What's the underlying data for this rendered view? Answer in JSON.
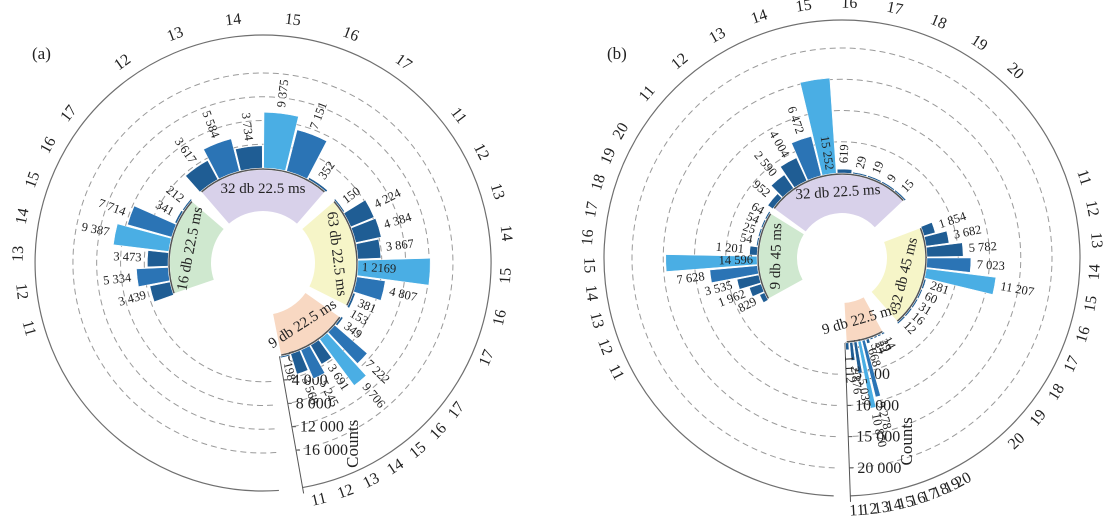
{
  "colors": {
    "bar_dark": "#1f5d94",
    "bar_mid": "#2b74b5",
    "bar_light": "#4aaee4",
    "sector_purple": "#d8d1ea",
    "sector_yellow": "#f6f5c8",
    "sector_orange": "#f8d8c2",
    "sector_green": "#cfe8cf",
    "grid": "#9a9a9a",
    "outer_ring": "#6f6f6f"
  },
  "chart_data": [
    {
      "type": "radial_bar",
      "panel_label": "(a)",
      "axis_label": "Counts",
      "radial_ticks": [
        0,
        4000,
        8000,
        12000,
        16000
      ],
      "radial_tick_labels": [
        "0",
        "4 000",
        "8 000",
        "12 000",
        "16 000"
      ],
      "radial_max": 16000,
      "grid": true,
      "groups": [
        {
          "label": "32 db 22.5 ms",
          "color": "sector_purple",
          "categories": [
            "12",
            "13",
            "14",
            "15",
            "16",
            "17"
          ],
          "values": [
            3617,
            5584,
            3734,
            9375,
            7151,
            352
          ],
          "value_labels": [
            "3 617",
            "5 584",
            "3 734",
            "9 375",
            "7 151",
            "352"
          ]
        },
        {
          "label": "63 db 22.5 ms",
          "color": "sector_yellow",
          "categories": [
            "11",
            "12",
            "13",
            "14",
            "15",
            "16",
            "17"
          ],
          "values": [
            150,
            4224,
            4384,
            3867,
            12169,
            4807,
            381
          ],
          "value_labels": [
            "150",
            "4 224",
            "4 384",
            "3 867",
            "1 2169",
            "4 807",
            "381"
          ],
          "trailing_labels": [
            "153"
          ]
        },
        {
          "label": "9 db 22.5 ms",
          "color": "sector_orange",
          "categories": [
            "17",
            "16",
            "15",
            "14",
            "13",
            "12",
            "11"
          ],
          "values": [
            349,
            7222,
            9706,
            3691,
            5245,
            3568,
            198
          ],
          "value_labels": [
            "349",
            "7 222",
            "9 706",
            "3 691",
            "5 245",
            "3 568",
            "198"
          ]
        },
        {
          "label": "16 db 22.5 ms",
          "color": "sector_green",
          "categories": [
            "11",
            "12",
            "13",
            "14",
            "15",
            "16",
            "17"
          ],
          "values": [
            3439,
            5334,
            3473,
            9387,
            7714,
            341,
            212
          ],
          "value_labels": [
            "3 439",
            "5 334",
            "3 473",
            "9 387",
            "7 714",
            "341",
            "212"
          ]
        }
      ]
    },
    {
      "type": "radial_bar",
      "panel_label": "(b)",
      "axis_label": "Counts",
      "radial_ticks": [
        0,
        5000,
        10000,
        15000,
        20000
      ],
      "radial_tick_labels": [
        "0",
        "5 000",
        "10 000",
        "15 000",
        "20 000"
      ],
      "radial_max": 20000,
      "grid": true,
      "groups": [
        {
          "label": "32 db 22.5 ms",
          "color": "sector_purple",
          "categories": [
            "11",
            "12",
            "13",
            "14",
            "15",
            "16",
            "17",
            "18",
            "19",
            "20"
          ],
          "values": [
            952,
            2590,
            4004,
            6472,
            15252,
            619,
            29,
            19,
            9,
            15
          ],
          "value_labels": [
            "952",
            "2 590",
            "4 004",
            "6 472",
            "15 252",
            "619",
            "29",
            "19",
            "9",
            "15"
          ]
        },
        {
          "label": "32 db 45 ms",
          "color": "sector_yellow",
          "categories": [
            "11",
            "12",
            "13",
            "14",
            "15",
            "16",
            "17",
            "18",
            "19",
            "20"
          ],
          "values": [
            1854,
            3682,
            5782,
            7023,
            11207,
            281,
            60,
            31,
            16,
            12
          ],
          "value_labels": [
            "1 854",
            "3 682",
            "5 782",
            "7 023",
            "11 207",
            "281",
            "60",
            "31",
            "16",
            "12"
          ]
        },
        {
          "label": "9 db 22.5 ms",
          "color": "sector_orange",
          "categories": [
            "20",
            "19",
            "18",
            "17",
            "16",
            "15",
            "14",
            "13",
            "12",
            "11"
          ],
          "values": [
            14,
            29,
            24,
            37,
            668,
            9278,
            10870,
            5037,
            2876,
            1112
          ],
          "value_labels": [
            "14",
            "29",
            "24",
            "37",
            "668",
            "9 278",
            "10 870",
            "5 037",
            "2 876",
            "1 112"
          ]
        },
        {
          "label": "9 db 45 ms",
          "color": "sector_green",
          "categories": [
            "11",
            "12",
            "13",
            "14",
            "15",
            "16",
            "17",
            "18",
            "19",
            "20"
          ],
          "values": [
            829,
            1962,
            3535,
            7628,
            14596,
            1201,
            54,
            25,
            54,
            64
          ],
          "value_labels": [
            "829",
            "1 962",
            "3 535",
            "7 628",
            "14 596",
            "1 201",
            "54",
            "25",
            "54",
            "64"
          ]
        }
      ]
    }
  ]
}
